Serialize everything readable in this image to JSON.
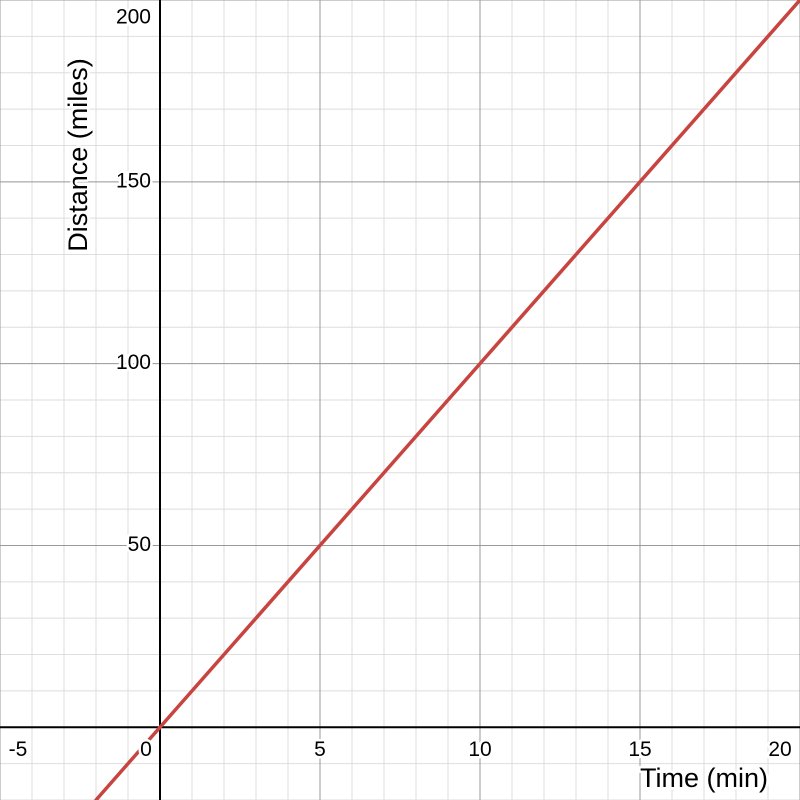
{
  "chart_data": {
    "type": "line",
    "x_label": "Time (min)",
    "y_label": "Distance (miles)",
    "x": [
      -2,
      0,
      5,
      10,
      15,
      20
    ],
    "series": [
      {
        "color": "#c74440",
        "values": [
          -20,
          0,
          50,
          100,
          150,
          200
        ]
      }
    ],
    "xlim": [
      -5,
      20
    ],
    "ylim": [
      -20,
      200
    ],
    "xticks": [
      -5,
      0,
      5,
      10,
      15,
      20
    ],
    "yticks": [
      50,
      100,
      150,
      200
    ],
    "grid": true,
    "minor_grid": true
  }
}
